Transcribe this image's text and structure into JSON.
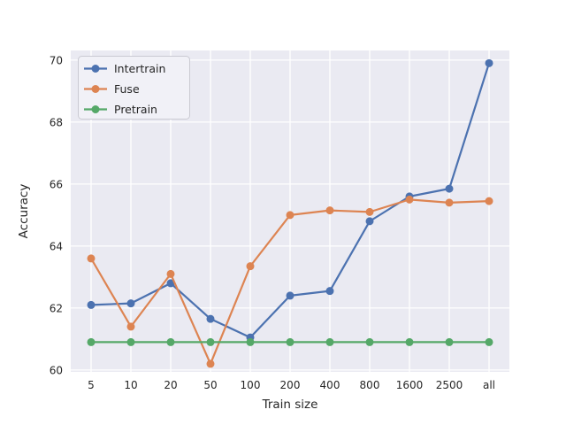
{
  "chart_data": {
    "type": "line",
    "title": "",
    "xlabel": "Train size",
    "ylabel": "Accuracy",
    "categories": [
      "5",
      "10",
      "20",
      "50",
      "100",
      "200",
      "400",
      "800",
      "1600",
      "2500",
      "all"
    ],
    "series": [
      {
        "name": "Intertrain",
        "color": "#4C72B0",
        "values": [
          62.1,
          62.15,
          62.8,
          61.65,
          61.05,
          62.4,
          62.55,
          64.8,
          65.6,
          65.85,
          69.9
        ]
      },
      {
        "name": "Fuse",
        "color": "#DD8452",
        "values": [
          63.6,
          61.4,
          63.1,
          60.2,
          63.35,
          65.0,
          65.15,
          65.1,
          65.5,
          65.4,
          65.45
        ]
      },
      {
        "name": "Pretrain",
        "color": "#55A868",
        "values": [
          60.9,
          60.9,
          60.9,
          60.9,
          60.9,
          60.9,
          60.9,
          60.9,
          60.9,
          60.9,
          60.9
        ]
      }
    ],
    "ylim": [
      59.94,
      70.31
    ],
    "yticks": [
      60,
      62,
      64,
      66,
      68,
      70
    ],
    "grid": true,
    "legend_position": "upper left",
    "plot_bg": "#EAEAF2",
    "grid_color": "#FFFFFF",
    "legend_bg": "#F1F1F7",
    "legend_border": "#CACAD2",
    "text_color": "#262626"
  }
}
